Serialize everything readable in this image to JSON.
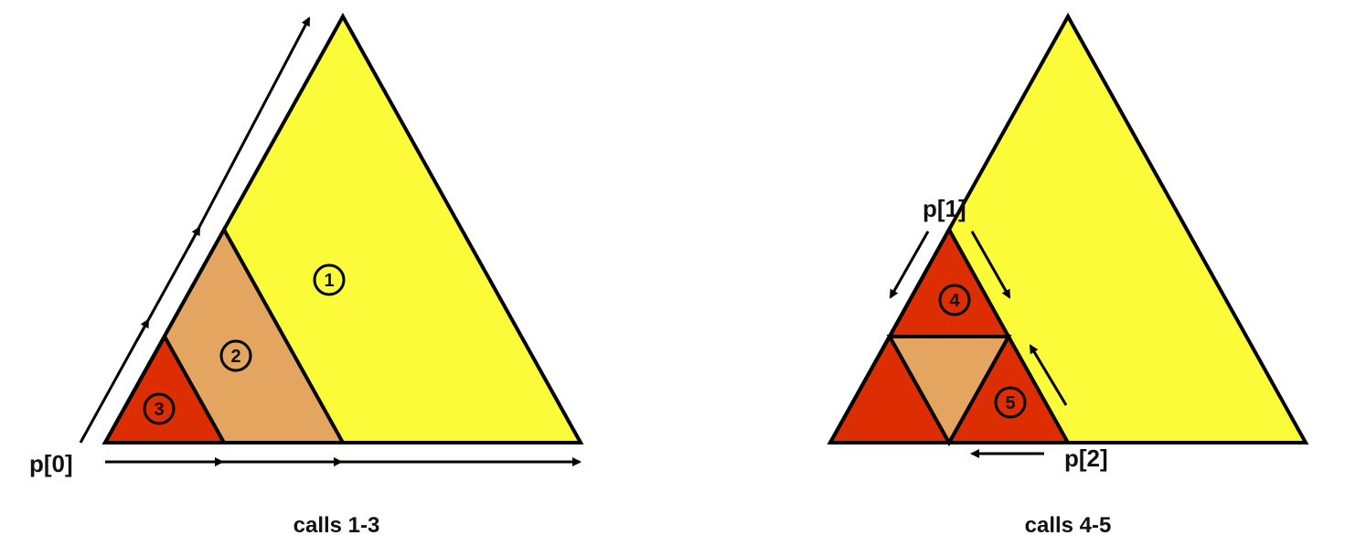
{
  "colors": {
    "yellow": "#fbfb3a",
    "orange": "#e3a560",
    "red": "#dc2e02",
    "stroke": "#000000"
  },
  "left_panel": {
    "caption": "calls 1-3",
    "p0_label": "p[0]",
    "region_1": "1",
    "region_2": "2",
    "region_3": "3"
  },
  "right_panel": {
    "caption": "calls 4-5",
    "p1_label": "p[1]",
    "p2_label": "p[2]",
    "region_4": "4",
    "region_5": "5"
  },
  "icons": [
    "arrow-icon"
  ]
}
